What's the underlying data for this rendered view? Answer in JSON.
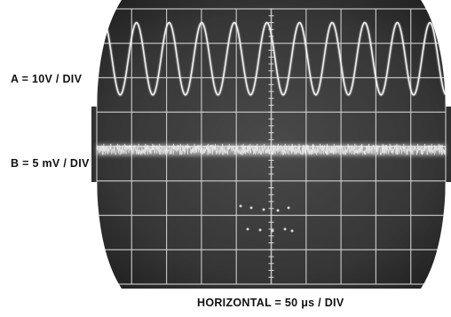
{
  "labels": {
    "channel_a": "A = 10V / DIV",
    "channel_b": "B = 5 mV / DIV",
    "horizontal": "HORIZONTAL = 50 μs / DIV"
  },
  "colors": {
    "screen": "#3a3a3a",
    "grid": "#d8d8d8",
    "trace": "#f2f2f2",
    "bezel": "#ffffff"
  },
  "chart_data": {
    "type": "line",
    "title": "",
    "xlabel": "HORIZONTAL = 50 μs / DIV",
    "grid": true,
    "divisions": {
      "x": 10,
      "y": 8
    },
    "x_unit": "μs",
    "series": [
      {
        "name": "A = 10V / DIV",
        "shape": "sine",
        "cycles_on_screen": 10.7,
        "amplitude_div": 1.05,
        "offset_div": 2.55
      },
      {
        "name": "B = 5 mV / DIV",
        "shape": "noise",
        "amplitude_div": 0.15,
        "offset_div": -0.1
      }
    ]
  }
}
